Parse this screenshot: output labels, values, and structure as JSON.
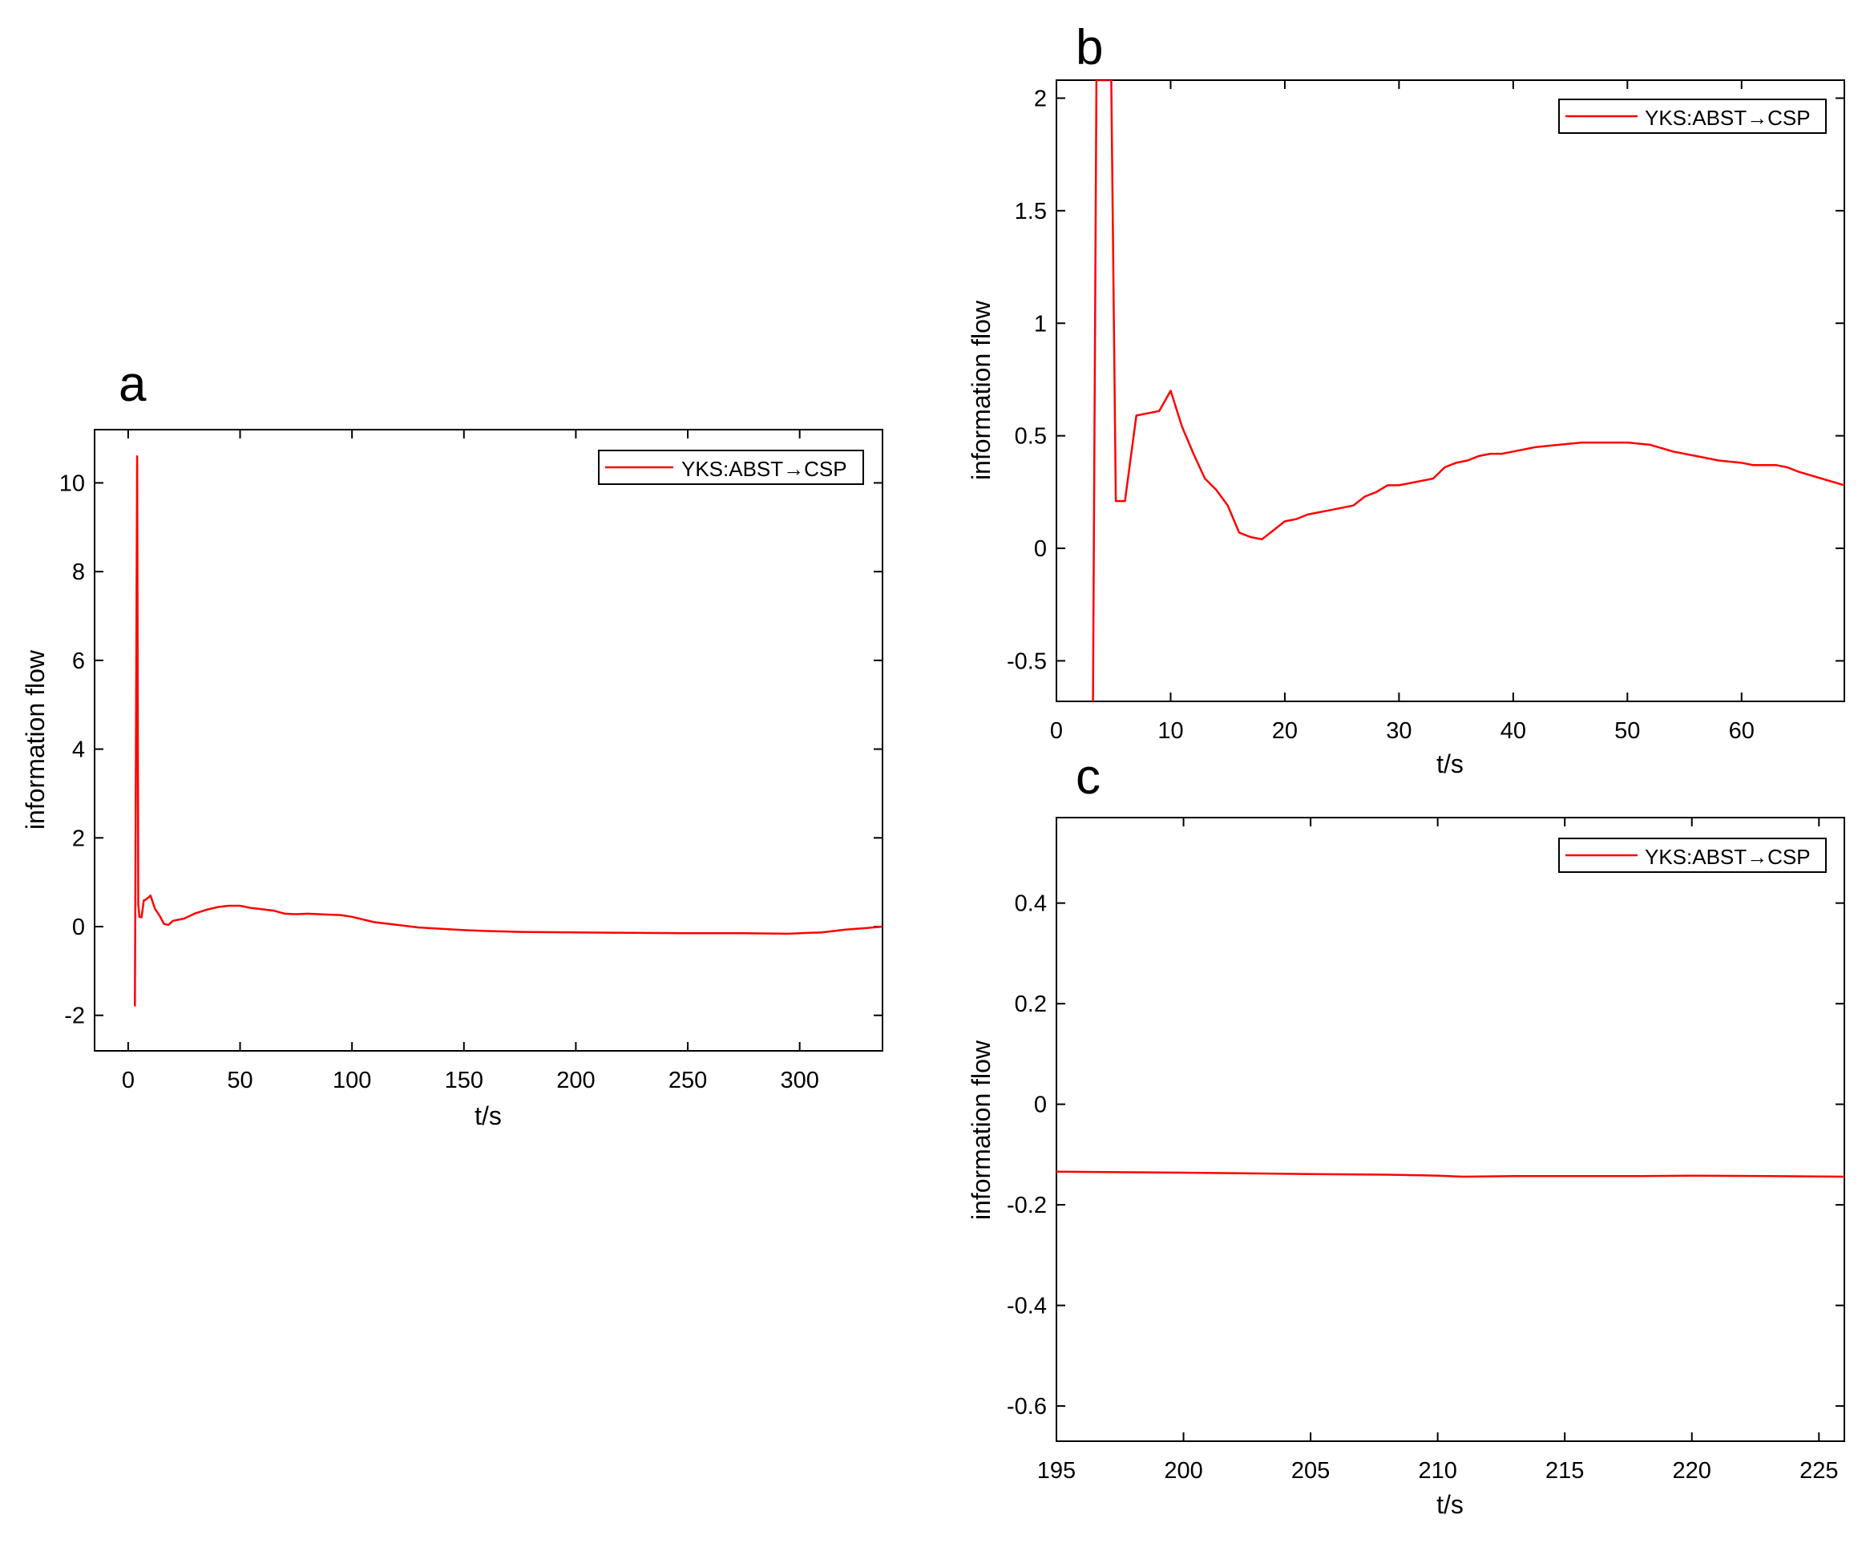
{
  "chart_data": [
    {
      "id": "a",
      "panel_label": "a",
      "type": "line",
      "xlabel": "t/s",
      "ylabel": "information flow",
      "xlim": [
        -15,
        337
      ],
      "ylim": [
        -2.8,
        11.2
      ],
      "xticks": [
        0,
        50,
        100,
        150,
        200,
        250,
        300
      ],
      "yticks": [
        -2,
        0,
        2,
        4,
        6,
        8,
        10
      ],
      "xtick_labels": [
        "0",
        "50",
        "100",
        "150",
        "200",
        "250",
        "300"
      ],
      "ytick_labels": [
        "-2",
        "0",
        "2",
        "4",
        "6",
        "8",
        "10"
      ],
      "legend": {
        "position": "top-right",
        "entries": [
          "YKS:ABST→CSP"
        ]
      },
      "series": [
        {
          "name": "YKS:ABST→CSP",
          "color": "#ff0000",
          "x": [
            3,
            4,
            4.5,
            5,
            6,
            7,
            8,
            10,
            12,
            14,
            16,
            18,
            20,
            25,
            30,
            35,
            40,
            45,
            50,
            55,
            60,
            65,
            70,
            75,
            80,
            85,
            90,
            95,
            100,
            110,
            120,
            130,
            140,
            150,
            160,
            175,
            200,
            225,
            250,
            275,
            295,
            300,
            310,
            320,
            330,
            337
          ],
          "y": [
            -1.8,
            10.6,
            0.5,
            0.22,
            0.21,
            0.59,
            0.61,
            0.7,
            0.4,
            0.25,
            0.06,
            0.04,
            0.13,
            0.18,
            0.3,
            0.38,
            0.44,
            0.47,
            0.47,
            0.42,
            0.39,
            0.36,
            0.29,
            0.28,
            0.29,
            0.28,
            0.27,
            0.26,
            0.22,
            0.1,
            0.04,
            -0.02,
            -0.05,
            -0.08,
            -0.1,
            -0.12,
            -0.13,
            -0.14,
            -0.15,
            -0.15,
            -0.16,
            -0.15,
            -0.13,
            -0.07,
            -0.03,
            0.0
          ]
        }
      ]
    },
    {
      "id": "b",
      "panel_label": "b",
      "type": "line",
      "xlabel": "t/s",
      "ylabel": "information flow",
      "xlim": [
        0,
        69
      ],
      "ylim": [
        -0.68,
        2.08
      ],
      "xticks": [
        0,
        10,
        20,
        30,
        40,
        50,
        60
      ],
      "yticks": [
        -0.5,
        0,
        0.5,
        1,
        1.5,
        2
      ],
      "xtick_labels": [
        "0",
        "10",
        "20",
        "30",
        "40",
        "50",
        "60"
      ],
      "ytick_labels": [
        "-0.5",
        "0",
        "0.5",
        "1",
        "1.5",
        "2"
      ],
      "legend": {
        "position": "top-right",
        "entries": [
          "YKS:ABST→CSP"
        ]
      },
      "series": [
        {
          "name": "YKS:ABST→CSP",
          "color": "#ff0000",
          "x": [
            3.2,
            3.5,
            4.8,
            5.2,
            6,
            7,
            9,
            10,
            11,
            12,
            13,
            14,
            15,
            16,
            17,
            18,
            19,
            20,
            21,
            22,
            24,
            26,
            27,
            28,
            29,
            30,
            31,
            32,
            33,
            34,
            35,
            36,
            37,
            38,
            39,
            40,
            42,
            44,
            46,
            47,
            48,
            50,
            52,
            54,
            56,
            58,
            60,
            61,
            63,
            64,
            65,
            67,
            69
          ],
          "y": [
            -0.68,
            2.08,
            2.08,
            0.21,
            0.21,
            0.59,
            0.61,
            0.7,
            0.54,
            0.42,
            0.31,
            0.26,
            0.19,
            0.07,
            0.05,
            0.04,
            0.08,
            0.12,
            0.13,
            0.15,
            0.17,
            0.19,
            0.23,
            0.25,
            0.28,
            0.28,
            0.29,
            0.3,
            0.31,
            0.36,
            0.38,
            0.39,
            0.41,
            0.42,
            0.42,
            0.43,
            0.45,
            0.46,
            0.47,
            0.47,
            0.47,
            0.47,
            0.46,
            0.43,
            0.41,
            0.39,
            0.38,
            0.37,
            0.37,
            0.36,
            0.34,
            0.31,
            0.28
          ]
        }
      ]
    },
    {
      "id": "c",
      "panel_label": "c",
      "type": "line",
      "xlabel": "t/s",
      "ylabel": "information flow",
      "xlim": [
        195,
        226
      ],
      "ylim": [
        -0.67,
        0.57
      ],
      "xticks": [
        195,
        200,
        205,
        210,
        215,
        220,
        225
      ],
      "yticks": [
        -0.6,
        -0.4,
        -0.2,
        0,
        0.2,
        0.4
      ],
      "xtick_labels": [
        "195",
        "200",
        "205",
        "210",
        "215",
        "220",
        "225"
      ],
      "ytick_labels": [
        "-0.6",
        "-0.4",
        "-0.2",
        "0",
        "0.2",
        "0.4"
      ],
      "legend": {
        "position": "top-right",
        "entries": [
          "YKS:ABST→CSP"
        ]
      },
      "series": [
        {
          "name": "YKS:ABST→CSP",
          "color": "#ff0000",
          "x": [
            195,
            197,
            200,
            202,
            205,
            208,
            210,
            211,
            213,
            215,
            218,
            220,
            223,
            226
          ],
          "y": [
            -0.134,
            -0.135,
            -0.136,
            -0.137,
            -0.139,
            -0.14,
            -0.142,
            -0.144,
            -0.143,
            -0.143,
            -0.143,
            -0.142,
            -0.143,
            -0.144
          ]
        }
      ]
    }
  ]
}
